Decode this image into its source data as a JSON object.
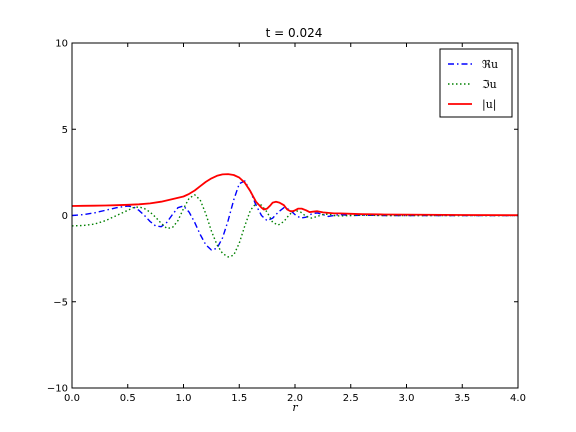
{
  "chart_data": {
    "type": "line",
    "title": "t = 0.024",
    "xlabel": "r",
    "ylabel": "",
    "xlim": [
      0.0,
      4.0
    ],
    "ylim": [
      -10,
      10
    ],
    "xticks": [
      0.0,
      0.5,
      1.0,
      1.5,
      2.0,
      2.5,
      3.0,
      3.5,
      4.0
    ],
    "xtick_labels": [
      "0.0",
      "0.5",
      "1.0",
      "1.5",
      "2.0",
      "2.5",
      "3.0",
      "3.5",
      "4.0"
    ],
    "yticks": [
      -10,
      -5,
      0,
      5,
      10
    ],
    "ytick_labels": [
      "−10",
      "−5",
      "0",
      "5",
      "10"
    ],
    "grid": false,
    "legend_position": "top-right",
    "series": [
      {
        "name": "ℜu",
        "color": "#0000ff",
        "style": "dashdot",
        "x": [
          0.0,
          0.1,
          0.2,
          0.3,
          0.4,
          0.5,
          0.55,
          0.6,
          0.65,
          0.7,
          0.75,
          0.8,
          0.85,
          0.9,
          0.95,
          1.0,
          1.05,
          1.1,
          1.15,
          1.2,
          1.25,
          1.3,
          1.35,
          1.4,
          1.45,
          1.5,
          1.55,
          1.6,
          1.65,
          1.7,
          1.75,
          1.8,
          1.85,
          1.9,
          1.95,
          2.0,
          2.05,
          2.1,
          2.15,
          2.2,
          2.25,
          2.3,
          2.35,
          2.4,
          2.5,
          2.6,
          2.8,
          3.0,
          3.5,
          4.0
        ],
        "y": [
          0.0,
          0.05,
          0.15,
          0.3,
          0.45,
          0.55,
          0.5,
          0.3,
          0.0,
          -0.35,
          -0.6,
          -0.65,
          -0.4,
          0.05,
          0.45,
          0.55,
          0.2,
          -0.4,
          -1.1,
          -1.7,
          -2.0,
          -1.9,
          -1.3,
          -0.3,
          0.9,
          1.85,
          2.0,
          1.4,
          0.6,
          0.0,
          -0.3,
          -0.15,
          0.2,
          0.45,
          0.35,
          0.05,
          -0.15,
          -0.1,
          0.1,
          0.15,
          0.05,
          -0.05,
          0.0,
          0.05,
          0.0,
          0.02,
          0.0,
          0.0,
          0.0,
          0.0
        ]
      },
      {
        "name": "ℑu",
        "color": "#008000",
        "style": "dotted",
        "x": [
          0.0,
          0.1,
          0.2,
          0.3,
          0.4,
          0.5,
          0.55,
          0.6,
          0.65,
          0.7,
          0.75,
          0.8,
          0.85,
          0.9,
          0.95,
          1.0,
          1.05,
          1.1,
          1.15,
          1.2,
          1.25,
          1.3,
          1.35,
          1.4,
          1.45,
          1.5,
          1.55,
          1.6,
          1.65,
          1.7,
          1.75,
          1.8,
          1.85,
          1.9,
          1.95,
          2.0,
          2.05,
          2.1,
          2.15,
          2.2,
          2.25,
          2.3,
          2.35,
          2.4,
          2.5,
          2.6,
          2.8,
          3.0,
          3.5,
          4.0
        ],
        "y": [
          -0.6,
          -0.58,
          -0.5,
          -0.3,
          0.0,
          0.3,
          0.45,
          0.5,
          0.4,
          0.2,
          -0.1,
          -0.45,
          -0.75,
          -0.7,
          -0.3,
          0.4,
          1.0,
          1.2,
          0.9,
          0.1,
          -0.9,
          -1.7,
          -2.2,
          -2.4,
          -2.3,
          -1.6,
          -0.6,
          0.3,
          0.7,
          0.6,
          0.2,
          -0.4,
          -0.55,
          -0.35,
          0.05,
          0.3,
          0.2,
          -0.05,
          -0.15,
          -0.05,
          0.05,
          0.08,
          0.0,
          -0.03,
          0.0,
          0.02,
          0.0,
          0.0,
          0.0,
          0.0
        ]
      },
      {
        "name": "|u|",
        "color": "#ff0000",
        "style": "solid",
        "x": [
          0.0,
          0.1,
          0.2,
          0.3,
          0.4,
          0.5,
          0.6,
          0.7,
          0.8,
          0.9,
          1.0,
          1.05,
          1.1,
          1.15,
          1.2,
          1.25,
          1.3,
          1.35,
          1.4,
          1.45,
          1.5,
          1.55,
          1.6,
          1.65,
          1.7,
          1.72,
          1.75,
          1.78,
          1.8,
          1.83,
          1.86,
          1.9,
          1.93,
          1.96,
          1.98,
          2.0,
          2.03,
          2.06,
          2.1,
          2.13,
          2.16,
          2.2,
          2.25,
          2.3,
          2.35,
          2.4,
          2.5,
          2.6,
          2.8,
          3.0,
          3.5,
          4.0
        ],
        "y": [
          0.55,
          0.56,
          0.57,
          0.58,
          0.6,
          0.62,
          0.65,
          0.7,
          0.8,
          0.95,
          1.1,
          1.25,
          1.45,
          1.7,
          1.95,
          2.15,
          2.3,
          2.38,
          2.4,
          2.35,
          2.2,
          1.9,
          1.4,
          0.8,
          0.45,
          0.35,
          0.4,
          0.6,
          0.75,
          0.8,
          0.75,
          0.6,
          0.35,
          0.25,
          0.25,
          0.3,
          0.4,
          0.4,
          0.3,
          0.2,
          0.22,
          0.25,
          0.18,
          0.15,
          0.12,
          0.12,
          0.1,
          0.08,
          0.06,
          0.05,
          0.03,
          0.02
        ]
      }
    ]
  }
}
